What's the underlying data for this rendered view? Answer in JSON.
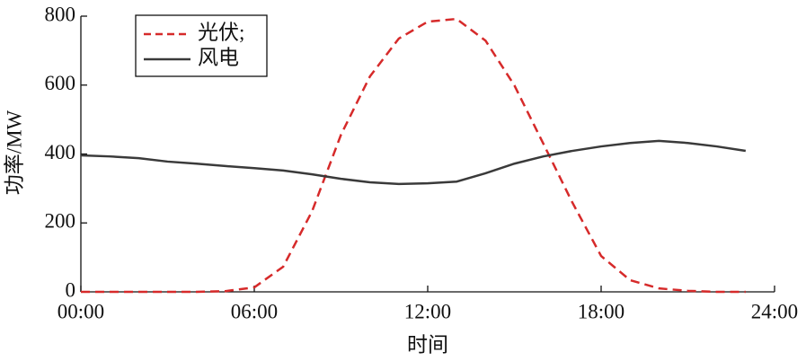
{
  "chart_data": {
    "type": "line",
    "xlabel": "时间",
    "ylabel": "功率/MW",
    "x": [
      0,
      1,
      2,
      3,
      4,
      5,
      6,
      7,
      8,
      9,
      10,
      11,
      12,
      13,
      14,
      15,
      16,
      17,
      18,
      19,
      20,
      21,
      22,
      23
    ],
    "xlim": [
      0,
      24
    ],
    "xticks": [
      {
        "value": 0,
        "label": "00:00"
      },
      {
        "value": 6,
        "label": "06:00"
      },
      {
        "value": 12,
        "label": "12:00"
      },
      {
        "value": 18,
        "label": "18:00"
      },
      {
        "value": 24,
        "label": "24:00"
      }
    ],
    "ylim": [
      0,
      800
    ],
    "yticks": [
      0,
      200,
      400,
      600,
      800
    ],
    "legend": "upper-left",
    "series": [
      {
        "name": "光伏;",
        "color": "#d62a2a",
        "dash": true,
        "values": [
          0,
          0,
          0,
          0,
          0,
          2,
          13,
          73,
          234,
          456,
          625,
          735,
          784,
          792,
          729,
          599,
          430,
          260,
          104,
          34,
          10,
          3,
          0,
          0
        ]
      },
      {
        "name": "风电",
        "color": "#3a3a3a",
        "dash": false,
        "values": [
          396,
          393,
          388,
          378,
          372,
          365,
          359,
          352,
          341,
          328,
          318,
          313,
          315,
          320,
          344,
          372,
          393,
          409,
          422,
          432,
          438,
          432,
          422,
          409
        ]
      }
    ]
  }
}
